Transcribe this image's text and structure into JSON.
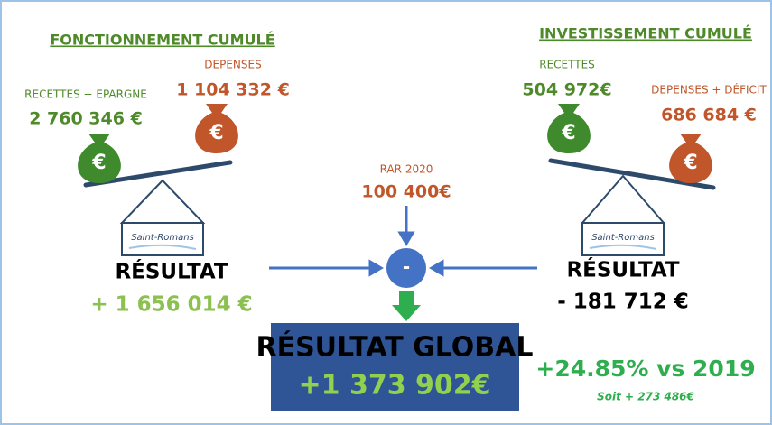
{
  "fonctionnement": {
    "title": "FONCTIONNEMENT CUMULÉ",
    "recettes_label": "RECETTES + EPARGNE",
    "recettes_value": "2 760 346 €",
    "depenses_label": "DEPENSES",
    "depenses_value": "1 104 332 €",
    "logo": "Saint-Romans",
    "resultat_label": "RÉSULTAT",
    "resultat_value": "+ 1 656 014 €"
  },
  "investissement": {
    "title": "INVESTISSEMENT CUMULÉ",
    "recettes_label": "RECETTES",
    "recettes_value": "504 972€",
    "depenses_label": "DEPENSES + DÉFICIT",
    "depenses_value": "686 684 €",
    "logo": "Saint-Romans",
    "resultat_label": "RÉSULTAT",
    "resultat_value": "- 181 712 €"
  },
  "currency_symbol": "€",
  "rar": {
    "label": "RAR 2020",
    "value": "100 400€"
  },
  "operator": "-",
  "global": {
    "label": "RÉSULTAT GLOBAL",
    "value": "+1 373 902€",
    "change": "+24.85% vs 2019",
    "note": "Soit + 273 486€"
  }
}
